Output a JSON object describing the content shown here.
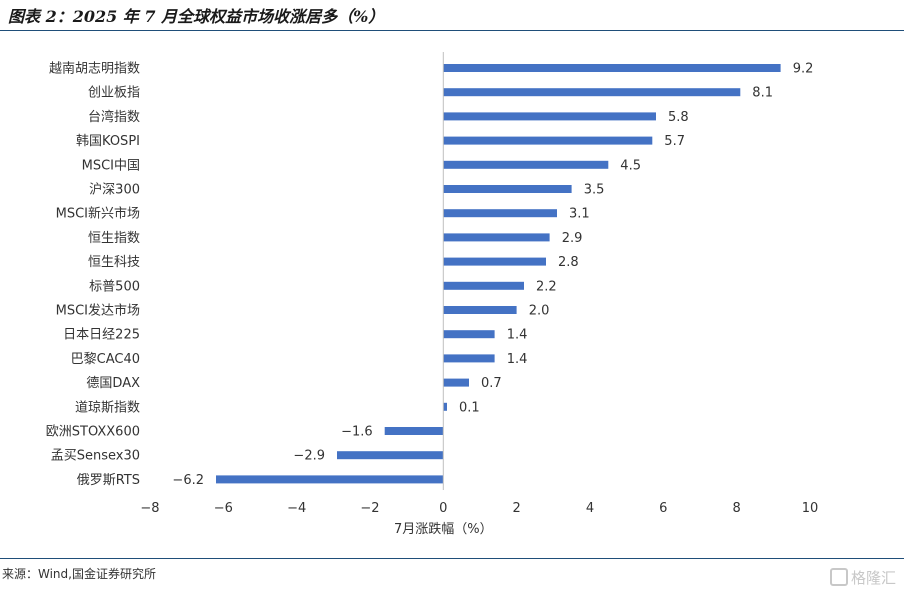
{
  "header": {
    "title": "图表 2：2025 年 7 月全球权益市场收涨居多（%）"
  },
  "footer": {
    "source": "来源：Wind,国金证券研究所",
    "watermark": "格隆汇"
  },
  "colors": {
    "bar": "#4472c4",
    "axis": "#bfbfbf",
    "rule": "#1f4e79"
  },
  "chart_data": {
    "type": "bar",
    "orientation": "horizontal",
    "title": "2025 年 7 月全球权益市场收涨居多（%）",
    "xlabel": "7月涨跌幅（%）",
    "ylabel": "",
    "xlim": [
      -8,
      10
    ],
    "xticks": [
      -8,
      -6,
      -4,
      -2,
      0,
      2,
      4,
      6,
      8,
      10
    ],
    "xtick_labels": [
      "−8",
      "−6",
      "−4",
      "−2",
      "0",
      "2",
      "4",
      "6",
      "8",
      "10"
    ],
    "grid": false,
    "categories": [
      "越南胡志明指数",
      "创业板指",
      "台湾指数",
      "韩国KOSPI",
      "MSCI中国",
      "沪深300",
      "MSCI新兴市场",
      "恒生指数",
      "恒生科技",
      "标普500",
      "MSCI发达市场",
      "日本日经225",
      "巴黎CAC40",
      "德国DAX",
      "道琼斯指数",
      "欧洲STOXX600",
      "孟买Sensex30",
      "俄罗斯RTS"
    ],
    "values": [
      9.2,
      8.1,
      5.8,
      5.7,
      4.5,
      3.5,
      3.1,
      2.9,
      2.8,
      2.2,
      2.0,
      1.4,
      1.4,
      0.7,
      0.1,
      -1.6,
      -2.9,
      -6.2
    ],
    "value_labels": [
      "9.2",
      "8.1",
      "5.8",
      "5.7",
      "4.5",
      "3.5",
      "3.1",
      "2.9",
      "2.8",
      "2.2",
      "2.0",
      "1.4",
      "1.4",
      "0.7",
      "0.1",
      "−1.6",
      "−2.9",
      "−6.2"
    ]
  }
}
